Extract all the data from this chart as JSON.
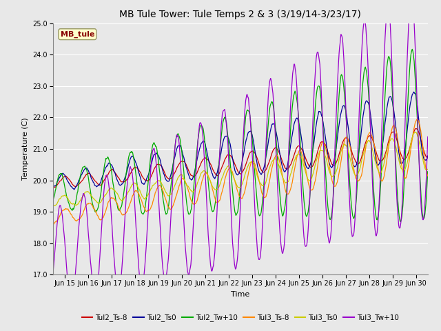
{
  "title": "MB Tule Tower: Tule Temps 2 & 3 (3/19/14-3/23/17)",
  "xlabel": "Time",
  "ylabel": "Temperature (C)",
  "ylim": [
    17.0,
    25.0
  ],
  "yticks": [
    17.0,
    18.0,
    19.0,
    20.0,
    21.0,
    22.0,
    23.0,
    24.0,
    25.0
  ],
  "xlim_days": [
    14.5,
    30.5
  ],
  "xtick_days": [
    15,
    16,
    17,
    18,
    19,
    20,
    21,
    22,
    23,
    24,
    25,
    26,
    27,
    28,
    29,
    30
  ],
  "xtick_labels": [
    "Jun 15",
    "Jun 16",
    "Jun 17",
    "Jun 18",
    "Jun 19",
    "Jun 20",
    "Jun 21",
    "Jun 22",
    "Jun 23",
    "Jun 24",
    "Jun 25",
    "Jun 26",
    "Jun 27",
    "Jun 28",
    "Jun 29",
    "Jun 30"
  ],
  "series": {
    "Tul2_Ts-8": {
      "color": "#cc0000"
    },
    "Tul2_Ts0": {
      "color": "#000099"
    },
    "Tul2_Tw+10": {
      "color": "#00aa00"
    },
    "Tul3_Ts-8": {
      "color": "#ff8800"
    },
    "Tul3_Ts0": {
      "color": "#cccc00"
    },
    "Tul3_Tw+10": {
      "color": "#9900cc"
    }
  },
  "legend_label": "MB_tule",
  "legend_box_facecolor": "#ffffcc",
  "legend_box_edgecolor": "#999966",
  "legend_text_color": "#880000",
  "bg_color": "#e8e8e8",
  "plot_bg_color": "#e8e8e8",
  "grid_color": "#ffffff",
  "title_fontsize": 10,
  "axis_fontsize": 8,
  "tick_fontsize": 7
}
